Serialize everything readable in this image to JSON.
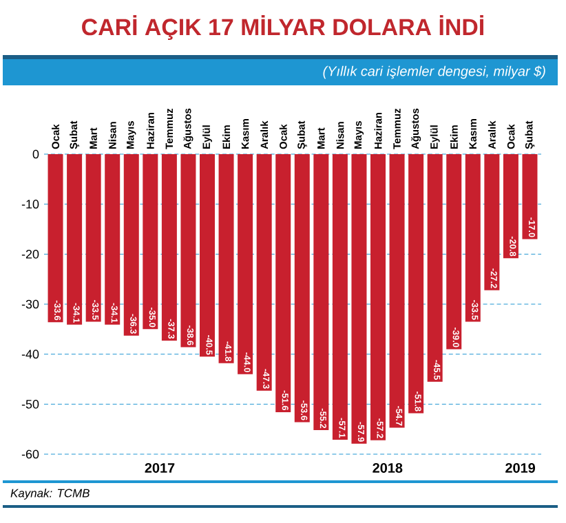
{
  "chart_data": {
    "type": "bar",
    "title": "CARİ AÇIK 17 MİLYAR DOLARA İNDİ",
    "subtitle": "(Yıllık cari işlemler dengesi, milyar $)",
    "categories": [
      "Ocak",
      "Şubat",
      "Mart",
      "Nisan",
      "Mayıs",
      "Haziran",
      "Temmuz",
      "Ağustos",
      "Eylül",
      "Ekim",
      "Kasım",
      "Aralık",
      "Ocak",
      "Şubat",
      "Mart",
      "Nisan",
      "Mayıs",
      "Haziran",
      "Temmuz",
      "Ağustos",
      "Eylül",
      "Ekim",
      "Kasım",
      "Aralık",
      "Ocak",
      "Şubat"
    ],
    "values": [
      -33.6,
      -34.1,
      -33.5,
      -34.1,
      -36.3,
      -35.0,
      -37.3,
      -38.6,
      -40.5,
      -41.8,
      -44.0,
      -47.3,
      -51.6,
      -53.6,
      -55.2,
      -57.1,
      -57.9,
      -57.2,
      -54.7,
      -51.8,
      -45.5,
      -39.0,
      -33.5,
      -27.2,
      -20.8,
      -17.0
    ],
    "value_labels": [
      "-33.6",
      "-34.1",
      "-33.5",
      "-34.1",
      "-36.3",
      "-35.0",
      "-37.3",
      "-38.6",
      "-40.5",
      "-41.8",
      "-44.0",
      "-47.3",
      "-51.6",
      "-53.6",
      "-55.2",
      "-57.1",
      "-57.9",
      "-57.2",
      "-54.7",
      "-51.8",
      "-45.5",
      "-39.0",
      "-33.5",
      "-27.2",
      "-20.8",
      "-17.0"
    ],
    "color": "#c8202e",
    "ylim": [
      -60,
      0
    ],
    "yticks": [
      0,
      -10,
      -20,
      -30,
      -40,
      -50,
      -60
    ],
    "grid": "y",
    "annotations": [
      "2017",
      "2018",
      "2019",
      "Kaynak: TCMB"
    ]
  }
}
